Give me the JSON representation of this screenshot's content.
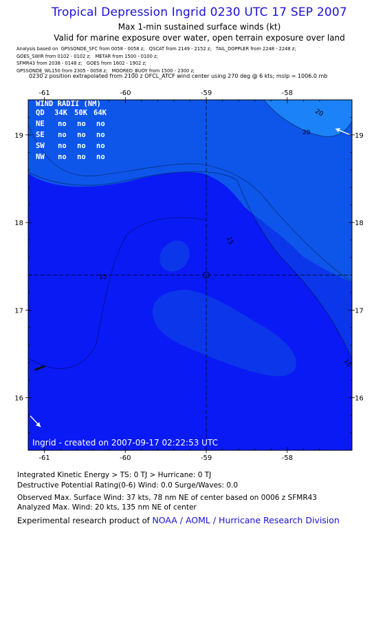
{
  "header": {
    "title": "Tropical Depression Ingrid 0230 UTC 17 SEP 2007",
    "subtitle": "Max 1-min sustained surface winds (kt)",
    "validity": "Valid for marine exposure over water, open terrain exposure over land"
  },
  "analysis_sources": [
    "Analysis based on  GPSSONDE_SFC from 0058 - 0058 z;   QSCAT from 2149 - 2152 z;   TAIL_DOPPLER from 2248 - 2248 z;",
    "GOES_SWIR from 0102 - 0102 z;   METAR from 1500 - 0100 z;",
    "SFMR43 from 2038 - 0148 z;   GOES from 1602 - 1902 z;",
    "GPSSONDE_WL150 from 2305 - 0058 z;   MOORED_BUOY from 1500 - 2300 z;"
  ],
  "position_note": "0230 z position extrapolated from 2100 z OFCL_ATCF wind center using 270 deg @ 6 kts; mslp = 1006.0 mb",
  "map": {
    "lon_ticks": [
      "-61",
      "-60",
      "-59",
      "-58"
    ],
    "lat_ticks": [
      "19",
      "18",
      "17",
      "16"
    ],
    "lon_range": [
      -61.2,
      -57.2
    ],
    "lat_range": [
      15.4,
      19.4
    ],
    "center": {
      "lon": -59.0,
      "lat": 17.4
    },
    "contour_labels": [
      "20",
      "20",
      "15",
      "15",
      "10"
    ],
    "colors": {
      "lt10": "#0a1af5",
      "10to15": "#0c36ea",
      "15to20": "#0e56ea",
      "gt20": "#1c82f8",
      "crosshair": "#000000"
    },
    "wind_radii": {
      "title": "WIND RADII (NM)",
      "header": [
        "QD",
        "34K",
        "50K",
        "64K"
      ],
      "rows": [
        {
          "qd": "NE",
          "k34": "no",
          "k50": "no",
          "k64": "no"
        },
        {
          "qd": "SE",
          "k34": "no",
          "k50": "no",
          "k64": "no"
        },
        {
          "qd": "SW",
          "k34": "no",
          "k50": "no",
          "k64": "no"
        },
        {
          "qd": "NW",
          "k34": "no",
          "k50": "no",
          "k64": "no"
        }
      ]
    },
    "footer": "Ingrid - created on 2007-09-17 02:22:53 UTC"
  },
  "stats": {
    "ike": "Integrated Kinetic Energy > TS: 0 TJ   > Hurricane: 0 TJ",
    "destructive": "Destructive Potential Rating(0-6)   Wind: 0.0 Surge/Waves: 0.0",
    "observed_max": "Observed Max. Surface Wind: 37 kts, 78 nm NE of center based on 0006 z SFMR43",
    "analyzed_max": "Analyzed Max. Wind: 20 kts, 135 nm NE of center"
  },
  "credit": {
    "prefix": "Experimental research product of",
    "org": "NOAA / AOML / Hurricane Research Division"
  }
}
